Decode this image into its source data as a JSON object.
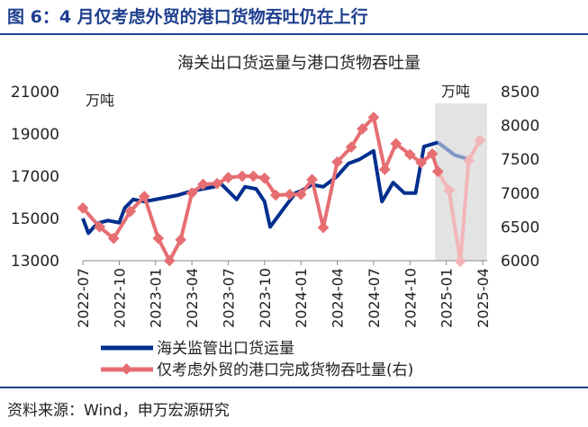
{
  "figure_title": "图 6：4 月仅考虑外贸的港口货物吞吐仍在上行",
  "source": "资料来源：Wind，申万宏源研究",
  "colors": {
    "primary_blue": "#002F8E",
    "projected_blue": "#7F97C6",
    "red": "#E66E72",
    "projected_red": "#F2B5B8",
    "shade": "#E3E3E3",
    "header_blue": "#1F3F8F"
  },
  "chart_data": {
    "type": "line",
    "title": "海关出口货运量与港口货物吞吐量",
    "y_left_unit": "万吨",
    "y_right_unit": "万吨",
    "y_left_ticks": [
      "21000",
      "19000",
      "17000",
      "15000",
      "13000"
    ],
    "y_right_ticks": [
      "8500",
      "8000",
      "7500",
      "7000",
      "6500",
      "6000"
    ],
    "y_left_range": [
      13000,
      21000
    ],
    "y_right_range": [
      6000,
      8500
    ],
    "x_tick_labels": [
      "2022-07",
      "2022-10",
      "2023-01",
      "2023-04",
      "2023-07",
      "2023-10",
      "2024-01",
      "2024-04",
      "2024-07",
      "2024-10",
      "2025-01",
      "2025-04"
    ],
    "x_tick_index": [
      0,
      13,
      26,
      39,
      52,
      65,
      78,
      91,
      104,
      117,
      130,
      143
    ],
    "x_index_max": 143,
    "shaded_from_index": 126,
    "legend_position": "bottom",
    "series": [
      {
        "name": "海关监管出口货运量",
        "axis": "left",
        "projected_from_index": 127,
        "points": [
          [
            0,
            15000
          ],
          [
            2,
            14300
          ],
          [
            4,
            14600
          ],
          [
            6,
            14800
          ],
          [
            9,
            14900
          ],
          [
            13,
            14800
          ],
          [
            15,
            15500
          ],
          [
            18,
            15900
          ],
          [
            22,
            15800
          ],
          [
            26,
            15900
          ],
          [
            30,
            16000
          ],
          [
            34,
            16100
          ],
          [
            39,
            16300
          ],
          [
            43,
            16400
          ],
          [
            47,
            16500
          ],
          [
            49,
            16700
          ],
          [
            52,
            16300
          ],
          [
            55,
            15900
          ],
          [
            58,
            16500
          ],
          [
            62,
            16400
          ],
          [
            65,
            15800
          ],
          [
            67,
            14600
          ],
          [
            72,
            15500
          ],
          [
            76,
            16200
          ],
          [
            78,
            16300
          ],
          [
            82,
            16600
          ],
          [
            86,
            16500
          ],
          [
            91,
            17000
          ],
          [
            95,
            17600
          ],
          [
            99,
            17800
          ],
          [
            104,
            18200
          ],
          [
            107,
            15800
          ],
          [
            111,
            16700
          ],
          [
            115,
            16200
          ],
          [
            119,
            16200
          ],
          [
            122,
            18400
          ],
          [
            127,
            18600
          ],
          [
            133,
            18000
          ],
          [
            138,
            17800
          ]
        ]
      },
      {
        "name": "仅考虑外贸的港口完成货物吞吐量(右)",
        "axis": "right",
        "projected_from_index": 127,
        "points": [
          [
            0,
            6780
          ],
          [
            6,
            6500
          ],
          [
            11,
            6330
          ],
          [
            17,
            6730
          ],
          [
            22,
            6950
          ],
          [
            27,
            6330
          ],
          [
            31,
            6000
          ],
          [
            35,
            6310
          ],
          [
            39,
            7000
          ],
          [
            43,
            7130
          ],
          [
            48,
            7140
          ],
          [
            52,
            7230
          ],
          [
            57,
            7250
          ],
          [
            61,
            7250
          ],
          [
            65,
            7220
          ],
          [
            69,
            6970
          ],
          [
            74,
            6980
          ],
          [
            78,
            6980
          ],
          [
            82,
            7200
          ],
          [
            86,
            6490
          ],
          [
            91,
            7460
          ],
          [
            96,
            7680
          ],
          [
            100,
            7950
          ],
          [
            104,
            8120
          ],
          [
            108,
            7350
          ],
          [
            112,
            7730
          ],
          [
            117,
            7570
          ],
          [
            121,
            7450
          ],
          [
            125,
            7580
          ],
          [
            127,
            7320
          ],
          [
            131,
            7040
          ],
          [
            135,
            5990
          ],
          [
            138,
            7480
          ],
          [
            142,
            7780
          ]
        ]
      }
    ]
  }
}
